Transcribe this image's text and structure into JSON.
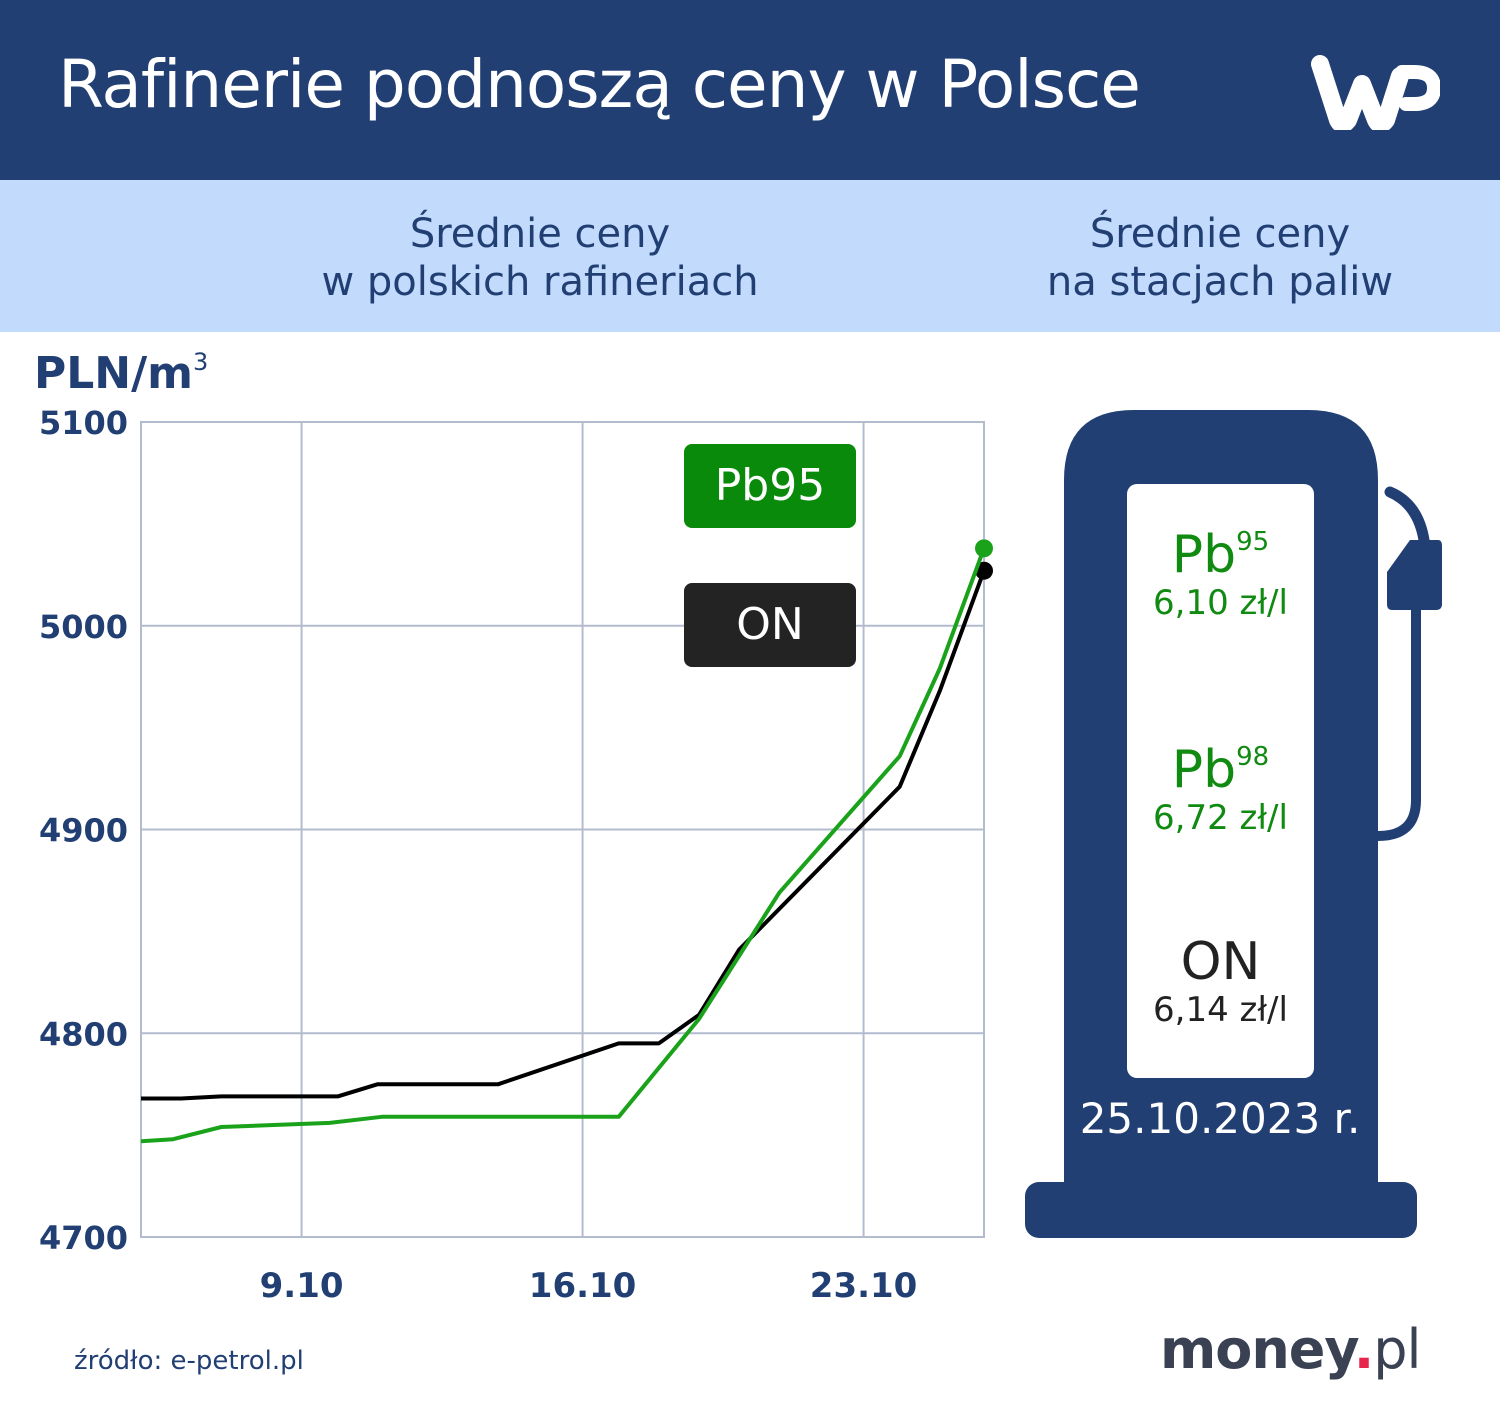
{
  "header": {
    "title": "Rafinerie podnoszą ceny w Polsce",
    "logo": "WP"
  },
  "subheader": {
    "left_line1": "Średnie ceny",
    "left_line2": "w polskich rafineriach",
    "right_line1": "Średnie ceny",
    "right_line2": "na stacjach paliw"
  },
  "colors": {
    "navy": "#223f74",
    "light_blue": "#c2dafc",
    "pb95_green": "#1aa31a",
    "pb95_badge": "#0a8a0a",
    "on_black": "#000000",
    "on_badge": "#232323",
    "grid": "#b3bccf",
    "money_dot": "#e8264d"
  },
  "chart_data": {
    "type": "line",
    "title": "Średnie ceny w polskich rafineriach",
    "ylabel": "PLN/m³",
    "unit_main": "PLN/m",
    "unit_sup": "3",
    "xlabel": "",
    "ylim": [
      4700,
      5100
    ],
    "yticks": [
      4700,
      4800,
      4900,
      5000,
      5100
    ],
    "xlim_days": [
      5,
      26
    ],
    "xticks": [
      {
        "day": 9,
        "label": "9.10"
      },
      {
        "day": 16,
        "label": "16.10"
      },
      {
        "day": 23,
        "label": "23.10"
      }
    ],
    "grid": true,
    "legend": [
      "Pb95",
      "ON"
    ],
    "legend_position": "top-right inside",
    "series": [
      {
        "name": "ON",
        "color": "#000000",
        "points": [
          [
            5.0,
            4768
          ],
          [
            6.0,
            4768
          ],
          [
            7.0,
            4769
          ],
          [
            9.9,
            4769
          ],
          [
            10.9,
            4775
          ],
          [
            13.9,
            4775
          ],
          [
            16.9,
            4795
          ],
          [
            17.9,
            4795
          ],
          [
            18.9,
            4809
          ],
          [
            19.9,
            4841
          ],
          [
            23.9,
            4921
          ],
          [
            24.9,
            4968
          ],
          [
            26.0,
            5027
          ]
        ]
      },
      {
        "name": "Pb95",
        "color": "#1aa31a",
        "points": [
          [
            5.0,
            4747
          ],
          [
            5.8,
            4748
          ],
          [
            7.0,
            4754
          ],
          [
            9.7,
            4756
          ],
          [
            11.0,
            4759
          ],
          [
            13.9,
            4759
          ],
          [
            16.9,
            4759
          ],
          [
            18.9,
            4807
          ],
          [
            20.9,
            4869
          ],
          [
            23.9,
            4936
          ],
          [
            24.9,
            4979
          ],
          [
            26.0,
            5038
          ]
        ]
      }
    ]
  },
  "legend": {
    "pb95": "Pb95",
    "on": "ON"
  },
  "pump": {
    "fuels": [
      {
        "name": "Pb",
        "grade": "95",
        "price": "6,10 zł/l"
      },
      {
        "name": "Pb",
        "grade": "98",
        "price": "6,72 zł/l"
      },
      {
        "name": "ON",
        "grade": "",
        "price": "6,14 zł/l"
      }
    ],
    "date": "25.10.2023 r."
  },
  "footer": {
    "source": "źródło: e-petrol.pl",
    "brand_main": "money",
    "brand_dot": ".",
    "brand_tld": "pl"
  }
}
